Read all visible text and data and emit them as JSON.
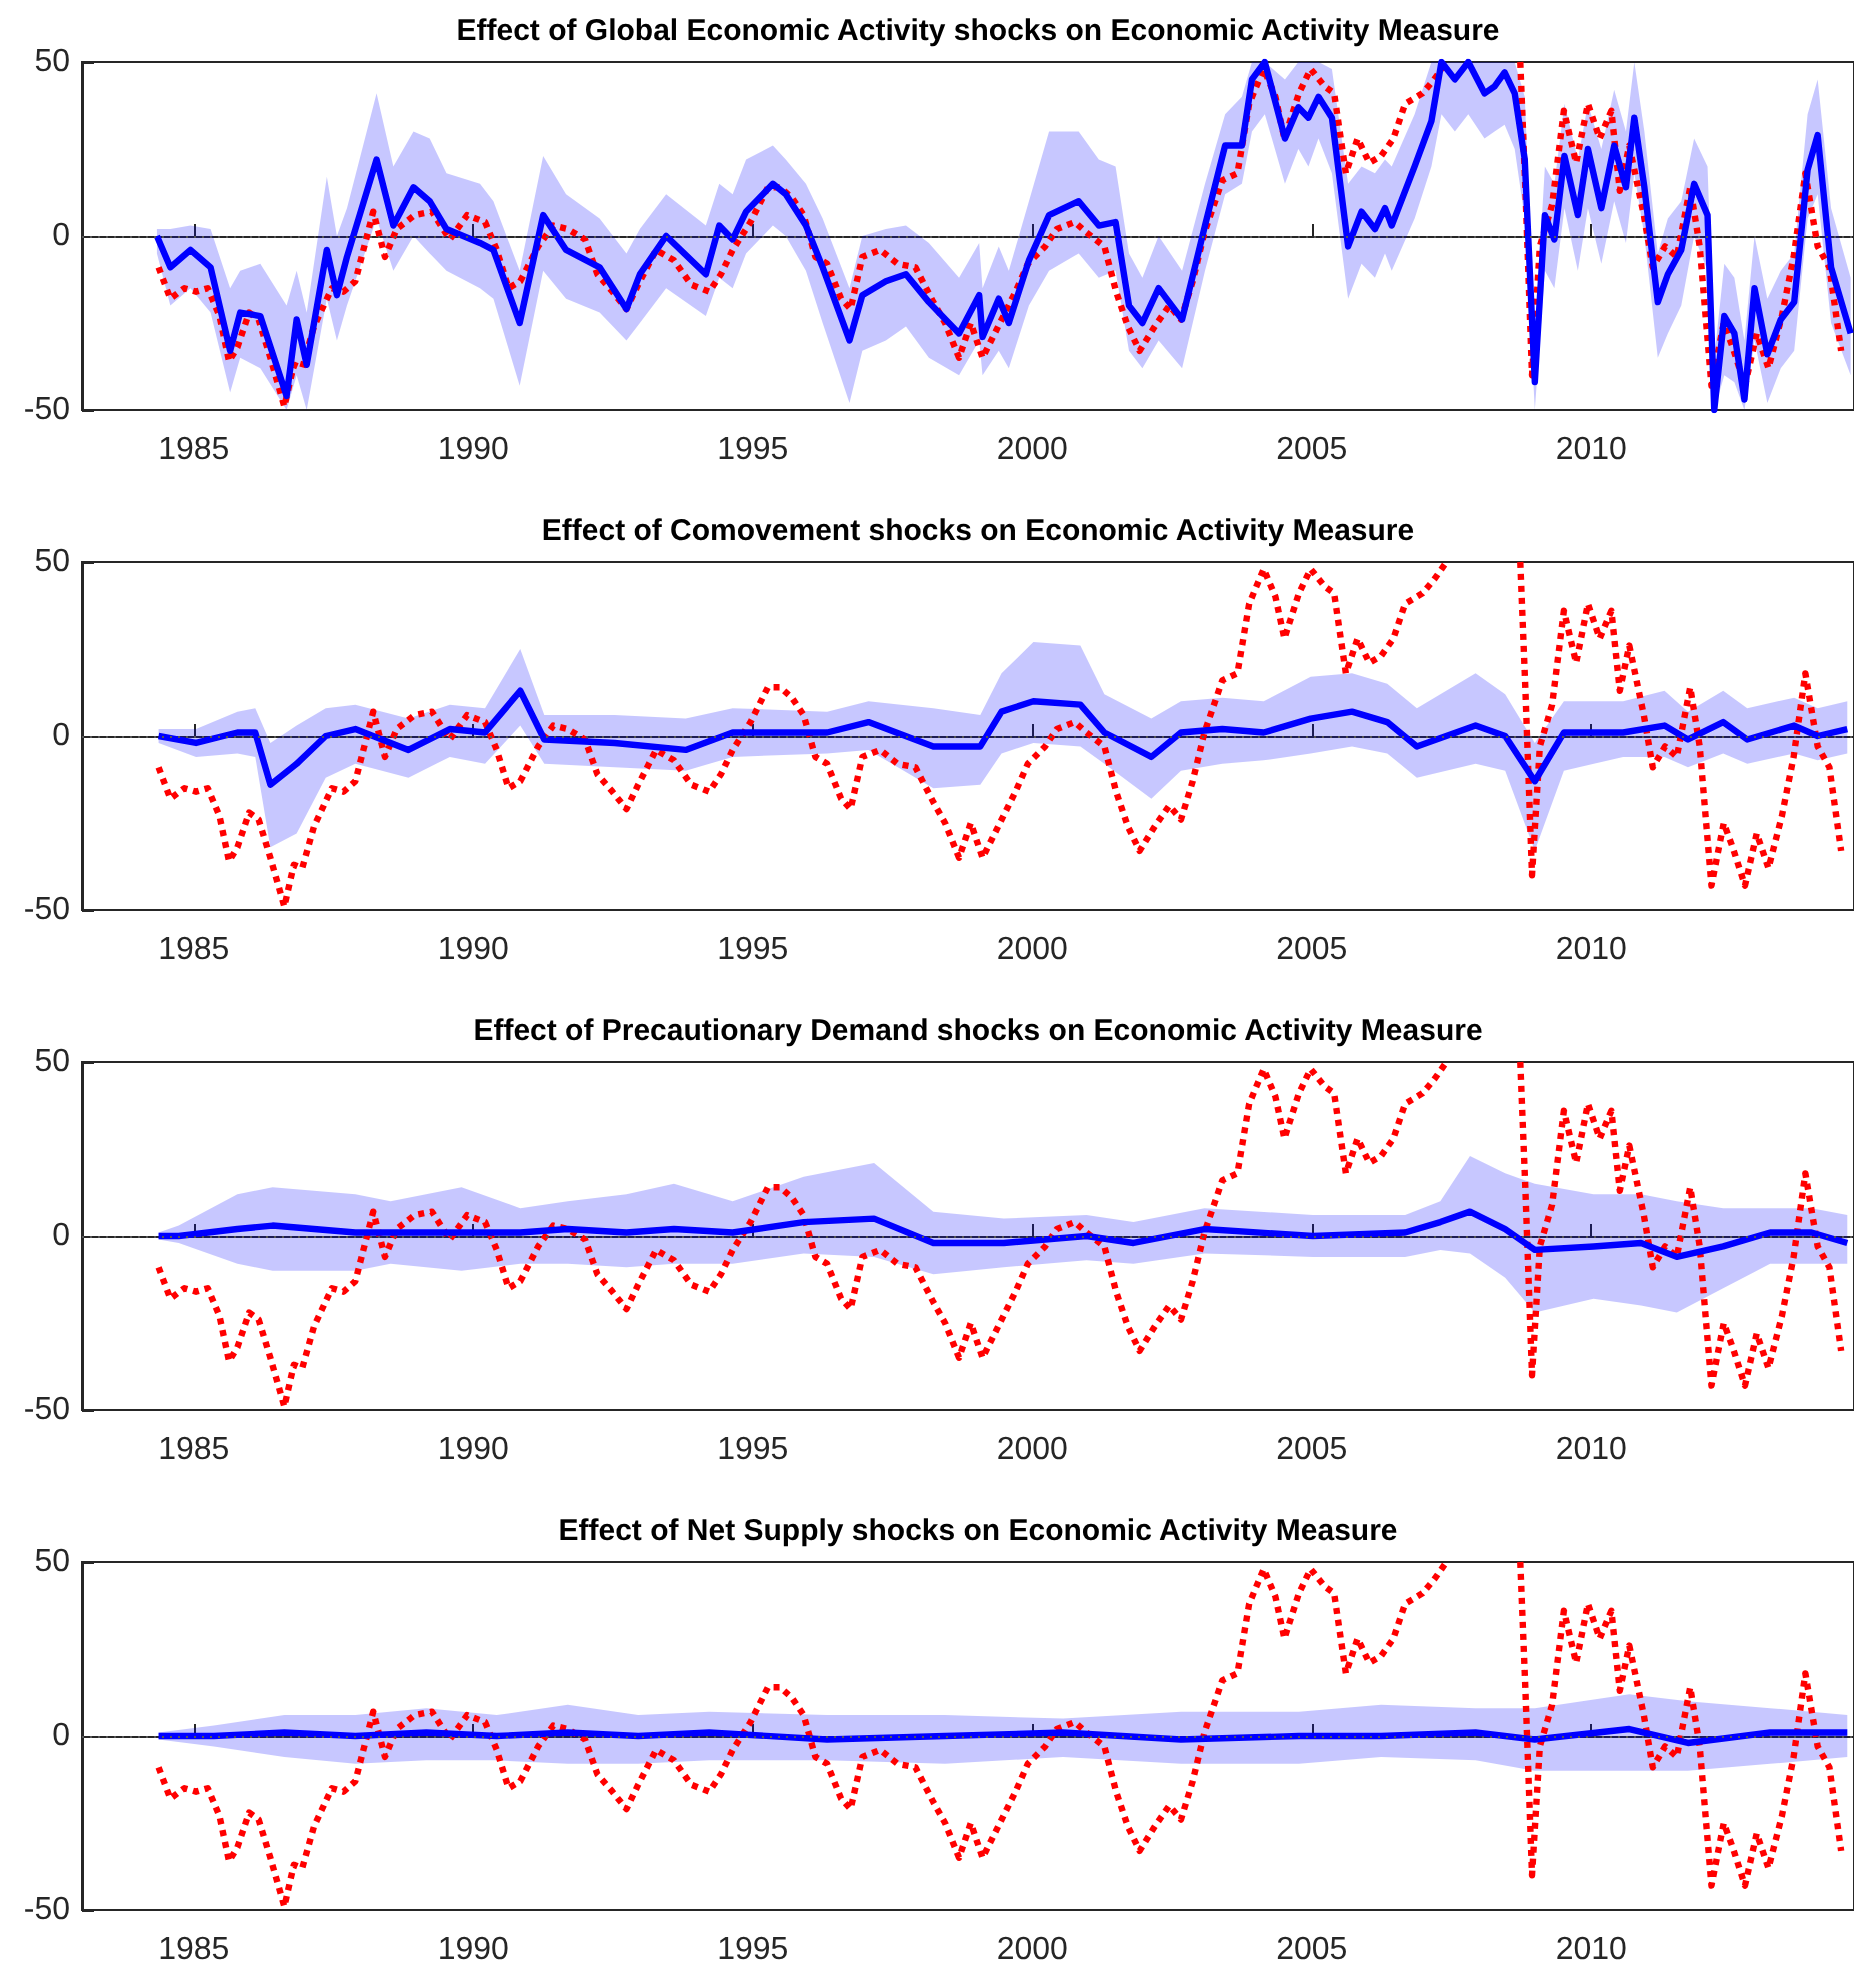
{
  "chart_data": [
    {
      "type": "line",
      "title": "Effect of Global Economic Activity shocks on Economic Activity Measure",
      "xlim": [
        1983,
        2014.7
      ],
      "xticks": [
        1985,
        1990,
        1995,
        2000,
        2005,
        2010
      ],
      "ylim": [
        -50,
        50
      ],
      "yticks": [
        -50,
        0,
        50
      ],
      "grid": false,
      "marker": "none",
      "ref_lines": [
        {
          "axis": "y",
          "value": 0,
          "color": "#555555",
          "line_style": "dotted"
        }
      ],
      "series": [
        {
          "color": "#ff0000",
          "line_style": "dotted",
          "x": [
            1984.37,
            1984.58,
            1984.83,
            1985.04,
            1985.25,
            1985.46,
            1985.63,
            1985.78,
            1985.99,
            1986.16,
            1986.37,
            1986.62,
            1986.79,
            1986.94,
            1987.15,
            1987.47,
            1987.68,
            1987.89,
            1988.21,
            1988.42,
            1988.63,
            1988.95,
            1989.26,
            1989.58,
            1989.89,
            1990.21,
            1990.42,
            1990.63,
            1990.84,
            1991.16,
            1991.43,
            1991.69,
            1992.0,
            1992.22,
            1992.49,
            1992.74,
            1992.95,
            1993.27,
            1993.59,
            1993.9,
            1994.22,
            1994.43,
            1994.64,
            1994.96,
            1995.27,
            1995.49,
            1995.7,
            1995.91,
            1996.12,
            1996.33,
            1996.58,
            1996.75,
            1996.96,
            1997.28,
            1997.59,
            1997.91,
            1998.23,
            1998.44,
            1998.69,
            1998.9,
            1999.11,
            1999.39,
            1999.7,
            1999.92,
            2000.23,
            2000.44,
            2000.76,
            2000.97,
            2001.29,
            2001.5,
            2001.71,
            2001.92,
            2002.19,
            2002.45,
            2002.66,
            2002.87,
            2003.08,
            2003.4,
            2003.67,
            2003.88,
            2004.14,
            2004.35,
            2004.51,
            2004.77,
            2004.98,
            2005.23,
            2005.4,
            2005.61,
            2005.82,
            2006.03,
            2006.24,
            2006.46,
            2006.67,
            2006.98,
            2007.19,
            2007.41,
            2008.0,
            2008.73,
            2008.82,
            2008.94,
            2009.08,
            2009.3,
            2009.51,
            2009.73,
            2009.94,
            2010.15,
            2010.36,
            2010.51,
            2010.68,
            2010.94,
            2011.1,
            2011.32,
            2011.53,
            2011.77,
            2011.94,
            2012.15,
            2012.37,
            2012.53,
            2012.75,
            2012.96,
            2013.17,
            2013.41,
            2013.62,
            2013.83,
            2014.05,
            2014.26,
            2014.47
          ],
          "values": [
            -9,
            -18,
            -15,
            -16,
            -15,
            -23,
            -36,
            -32,
            -22,
            -24,
            -35,
            -49,
            -37,
            -38,
            -26,
            -15,
            -16,
            -13,
            7,
            -6,
            2,
            6,
            7,
            -1,
            6,
            4,
            -4,
            -15,
            -13,
            -3,
            3,
            2,
            -1,
            -11,
            -16,
            -21,
            -14,
            -4,
            -7,
            -14,
            -16,
            -11,
            -4,
            4,
            14,
            14,
            11,
            6,
            -6,
            -8,
            -18,
            -21,
            -6,
            -4,
            -8,
            -9,
            -19,
            -25,
            -35,
            -25,
            -35,
            -26,
            -16,
            -8,
            -3,
            2,
            4,
            1,
            -3,
            -16,
            -26,
            -33,
            -26,
            -20,
            -24,
            -13,
            1,
            16,
            18,
            38,
            48,
            40,
            28,
            41,
            48,
            43,
            41,
            18,
            28,
            21,
            23,
            28,
            38,
            41,
            45,
            50,
            null,
            50,
            14,
            -40,
            -3,
            9,
            36,
            21,
            38,
            28,
            36,
            13,
            26,
            6,
            -9,
            -3,
            -6,
            14,
            -3,
            -43,
            -25,
            -32,
            -43,
            -28,
            -38,
            -23,
            -6,
            18,
            -3,
            -9,
            -33
          ]
        },
        {
          "color": "#0000ff",
          "line_style": "solid",
          "x": [
            1984.34,
            1984.58,
            1984.94,
            1985.3,
            1985.65,
            1985.83,
            1986.19,
            1986.66,
            1986.84,
            1987.02,
            1987.38,
            1987.56,
            1987.74,
            1988.27,
            1988.57,
            1988.93,
            1989.22,
            1989.52,
            1990.12,
            1990.36,
            1990.83,
            1991.25,
            1991.66,
            1992.26,
            1992.74,
            1992.98,
            1993.45,
            1994.16,
            1994.4,
            1994.64,
            1994.88,
            1995.36,
            1995.59,
            1995.95,
            1996.25,
            1996.73,
            1996.96,
            1997.38,
            1997.74,
            1998.15,
            1998.69,
            1999.05,
            1999.11,
            1999.4,
            1999.58,
            1999.94,
            2000.3,
            2000.83,
            2001.19,
            2001.49,
            2001.73,
            2001.97,
            2002.26,
            2002.68,
            2003.09,
            2003.45,
            2003.75,
            2003.93,
            2004.16,
            2004.52,
            2004.76,
            2004.94,
            2005.12,
            2005.36,
            2005.65,
            2005.89,
            2006.13,
            2006.31,
            2006.43,
            2006.84,
            2007.14,
            2007.32,
            2007.56,
            2007.8,
            2008.09,
            2008.27,
            2008.45,
            2008.63,
            2008.81,
            2008.99,
            2009.17,
            2009.34,
            2009.52,
            2009.76,
            2009.94,
            2010.18,
            2010.41,
            2010.62,
            2010.77,
            2010.95,
            2011.19,
            2011.37,
            2011.61,
            2011.84,
            2012.08,
            2012.2,
            2012.38,
            2012.56,
            2012.74,
            2012.92,
            2013.15,
            2013.39,
            2013.63,
            2013.87,
            2014.05,
            2014.29,
            2014.64
          ],
          "values": [
            0,
            -9,
            -4,
            -9,
            -33,
            -22,
            -23,
            -46,
            -24,
            -37,
            -4,
            -17,
            -6,
            22,
            3,
            14,
            10,
            2,
            -2,
            -4,
            -25,
            6,
            -4,
            -9,
            -21,
            -11,
            0,
            -11,
            3,
            -1,
            7,
            15,
            12,
            3,
            -9,
            -30,
            -17,
            -13,
            -11,
            -19,
            -28,
            -17,
            -29,
            -18,
            -25,
            -7,
            6,
            10,
            3,
            4,
            -20,
            -25,
            -15,
            -24,
            3,
            26,
            26,
            45,
            50,
            28,
            37,
            34,
            40,
            34,
            -3,
            7,
            2,
            8,
            3,
            20,
            33,
            50,
            45,
            50,
            41,
            43,
            47,
            41,
            22,
            -42,
            6,
            -1,
            23,
            6,
            25,
            8,
            26,
            14,
            34,
            14,
            -19,
            -11,
            -4,
            15,
            6,
            -50,
            -23,
            -28,
            -47,
            -15,
            -34,
            -24,
            -19,
            19,
            29,
            -9,
            -28
          ],
          "lower": [
            -5,
            -20,
            -15,
            -22,
            -45,
            -35,
            -38,
            -50,
            -40,
            -50,
            -18,
            -30,
            -20,
            5,
            -10,
            0,
            -5,
            -10,
            -15,
            -18,
            -43,
            -10,
            -18,
            -22,
            -30,
            -25,
            -15,
            -23,
            -12,
            -15,
            -5,
            3,
            0,
            -10,
            -25,
            -48,
            -33,
            -30,
            -26,
            -35,
            -40,
            -30,
            -40,
            -33,
            -38,
            -20,
            -10,
            -5,
            -12,
            -10,
            -33,
            -38,
            -30,
            -38,
            -10,
            12,
            15,
            30,
            35,
            15,
            25,
            20,
            28,
            18,
            -18,
            -8,
            -12,
            -5,
            -10,
            5,
            20,
            35,
            30,
            35,
            28,
            30,
            32,
            25,
            5,
            -50,
            -10,
            -15,
            8,
            -10,
            8,
            -8,
            10,
            -2,
            18,
            0,
            -35,
            -28,
            -20,
            0,
            -10,
            -50,
            -40,
            -42,
            -50,
            -30,
            -48,
            -38,
            -33,
            5,
            12,
            -25,
            -40
          ],
          "upper": [
            2,
            2,
            3,
            2,
            -15,
            -10,
            -8,
            -20,
            -10,
            -22,
            17,
            0,
            8,
            41,
            20,
            30,
            28,
            18,
            15,
            10,
            -10,
            23,
            12,
            5,
            -5,
            2,
            12,
            3,
            15,
            12,
            22,
            26,
            22,
            15,
            5,
            -15,
            0,
            2,
            3,
            -2,
            -12,
            -2,
            -15,
            -3,
            -10,
            10,
            30,
            30,
            22,
            20,
            -5,
            -12,
            0,
            -10,
            15,
            35,
            40,
            50,
            50,
            45,
            50,
            50,
            50,
            48,
            15,
            20,
            18,
            22,
            20,
            35,
            50,
            50,
            50,
            50,
            50,
            50,
            50,
            50,
            40,
            -30,
            20,
            15,
            38,
            22,
            38,
            25,
            42,
            30,
            50,
            30,
            -5,
            5,
            10,
            28,
            20,
            -35,
            -8,
            -12,
            -30,
            0,
            -18,
            -10,
            -5,
            35,
            45,
            8,
            -12
          ]
        }
      ]
    },
    {
      "type": "line",
      "title": "Effect of Comovement shocks on Economic Activity Measure",
      "xlim": [
        1983,
        2014.7
      ],
      "xticks": [
        1985,
        1990,
        1995,
        2000,
        2005,
        2010
      ],
      "ylim": [
        -50,
        50
      ],
      "yticks": [
        -50,
        0,
        50
      ],
      "grid": false,
      "marker": "none",
      "ref_lines": [
        {
          "axis": "y",
          "value": 0,
          "color": "#555555",
          "line_style": "dotted"
        }
      ],
      "series": [
        {
          "color": "#ff0000",
          "line_style": "dotted",
          "x": [
            1984.37,
            1984.58,
            1984.83,
            1985.04,
            1985.25,
            1985.46,
            1985.63,
            1985.78,
            1985.99,
            1986.16,
            1986.37,
            1986.62,
            1986.79,
            1986.94,
            1987.15,
            1987.47,
            1987.68,
            1987.89,
            1988.21,
            1988.42,
            1988.63,
            1988.95,
            1989.26,
            1989.58,
            1989.89,
            1990.21,
            1990.42,
            1990.63,
            1990.84,
            1991.16,
            1991.43,
            1991.69,
            1992.0,
            1992.22,
            1992.49,
            1992.74,
            1992.95,
            1993.27,
            1993.59,
            1993.9,
            1994.22,
            1994.43,
            1994.64,
            1994.96,
            1995.27,
            1995.49,
            1995.7,
            1995.91,
            1996.12,
            1996.33,
            1996.58,
            1996.75,
            1996.96,
            1997.28,
            1997.59,
            1997.91,
            1998.23,
            1998.44,
            1998.69,
            1998.9,
            1999.11,
            1999.39,
            1999.7,
            1999.92,
            2000.23,
            2000.44,
            2000.76,
            2000.97,
            2001.29,
            2001.5,
            2001.71,
            2001.92,
            2002.19,
            2002.45,
            2002.66,
            2002.87,
            2003.08,
            2003.4,
            2003.67,
            2003.88,
            2004.14,
            2004.35,
            2004.51,
            2004.77,
            2004.98,
            2005.23,
            2005.4,
            2005.61,
            2005.82,
            2006.03,
            2006.24,
            2006.46,
            2006.67,
            2006.98,
            2007.19,
            2007.41,
            2008.0,
            2008.73,
            2008.82,
            2008.94,
            2009.08,
            2009.3,
            2009.51,
            2009.73,
            2009.94,
            2010.15,
            2010.36,
            2010.51,
            2010.68,
            2010.94,
            2011.1,
            2011.32,
            2011.53,
            2011.77,
            2011.94,
            2012.15,
            2012.37,
            2012.53,
            2012.75,
            2012.96,
            2013.17,
            2013.41,
            2013.62,
            2013.83,
            2014.05,
            2014.26,
            2014.47
          ],
          "values": [
            -9,
            -18,
            -15,
            -16,
            -15,
            -23,
            -36,
            -32,
            -22,
            -24,
            -35,
            -49,
            -37,
            -38,
            -26,
            -15,
            -16,
            -13,
            7,
            -6,
            2,
            6,
            7,
            -1,
            6,
            4,
            -4,
            -15,
            -13,
            -3,
            3,
            2,
            -1,
            -11,
            -16,
            -21,
            -14,
            -4,
            -7,
            -14,
            -16,
            -11,
            -4,
            4,
            14,
            14,
            11,
            6,
            -6,
            -8,
            -18,
            -21,
            -6,
            -4,
            -8,
            -9,
            -19,
            -25,
            -35,
            -25,
            -35,
            -26,
            -16,
            -8,
            -3,
            2,
            4,
            1,
            -3,
            -16,
            -26,
            -33,
            -26,
            -20,
            -24,
            -13,
            1,
            16,
            18,
            38,
            48,
            40,
            28,
            41,
            48,
            43,
            41,
            18,
            28,
            21,
            23,
            28,
            38,
            41,
            45,
            50,
            null,
            50,
            14,
            -40,
            -3,
            9,
            36,
            21,
            38,
            28,
            36,
            13,
            26,
            6,
            -9,
            -3,
            -6,
            14,
            -3,
            -43,
            -25,
            -32,
            -43,
            -28,
            -38,
            -23,
            -6,
            18,
            -3,
            -9,
            -33
          ]
        },
        {
          "color": "#0000ff",
          "line_style": "solid",
          "x": [
            1984.37,
            1985.04,
            1985.78,
            1986.1,
            1986.37,
            1986.84,
            1987.36,
            1987.89,
            1988.84,
            1989.58,
            1990.21,
            1990.84,
            1991.27,
            1992.53,
            1993.8,
            1994.64,
            1996.33,
            1997.07,
            1998.23,
            1999.07,
            1999.45,
            2000.02,
            2000.86,
            2001.29,
            2002.13,
            2002.66,
            2003.4,
            2004.14,
            2004.98,
            2005.72,
            2006.35,
            2006.88,
            2007.93,
            2008.46,
            2008.99,
            2009.51,
            2010.57,
            2011.31,
            2011.73,
            2012.36,
            2012.79,
            2013.63,
            2014.05,
            2014.58
          ],
          "values": [
            0,
            -2,
            1,
            1,
            -14,
            -8,
            0,
            2,
            -4,
            2,
            1,
            13,
            -1,
            -2,
            -4,
            1,
            1,
            4,
            -3,
            -3,
            7,
            10,
            9,
            1,
            -6,
            1,
            2,
            1,
            5,
            7,
            4,
            -3,
            3,
            0,
            -13,
            1,
            1,
            3,
            -1,
            4,
            -1,
            3,
            0,
            2
          ],
          "lower": [
            -2,
            -6,
            -5,
            -6,
            -32,
            -28,
            -12,
            -8,
            -12,
            -6,
            -8,
            3,
            -8,
            -9,
            -10,
            -6,
            -5,
            -4,
            -15,
            -14,
            -5,
            -2,
            -3,
            -8,
            -18,
            -10,
            -8,
            -7,
            -5,
            -3,
            -5,
            -12,
            -8,
            -10,
            -33,
            -10,
            -6,
            -6,
            -9,
            -5,
            -8,
            -5,
            -7,
            -5
          ],
          "upper": [
            2,
            2,
            7,
            8,
            -2,
            3,
            8,
            9,
            5,
            9,
            8,
            25,
            6,
            6,
            5,
            8,
            7,
            10,
            8,
            6,
            18,
            27,
            26,
            12,
            5,
            10,
            11,
            10,
            17,
            18,
            15,
            8,
            18,
            12,
            -2,
            10,
            10,
            13,
            7,
            13,
            8,
            11,
            8,
            10
          ]
        }
      ]
    },
    {
      "type": "line",
      "title": "Effect of Precautionary Demand shocks on Economic Activity Measure",
      "xlim": [
        1983,
        2014.7
      ],
      "xticks": [
        1985,
        1990,
        1995,
        2000,
        2005,
        2010
      ],
      "ylim": [
        -50,
        50
      ],
      "yticks": [
        -50,
        0,
        50
      ],
      "grid": false,
      "marker": "none",
      "ref_lines": [
        {
          "axis": "y",
          "value": 0,
          "color": "#555555",
          "line_style": "dotted"
        }
      ],
      "series": [
        {
          "color": "#ff0000",
          "line_style": "dotted",
          "x": [
            1984.37,
            1984.58,
            1984.83,
            1985.04,
            1985.25,
            1985.46,
            1985.63,
            1985.78,
            1985.99,
            1986.16,
            1986.37,
            1986.62,
            1986.79,
            1986.94,
            1987.15,
            1987.47,
            1987.68,
            1987.89,
            1988.21,
            1988.42,
            1988.63,
            1988.95,
            1989.26,
            1989.58,
            1989.89,
            1990.21,
            1990.42,
            1990.63,
            1990.84,
            1991.16,
            1991.43,
            1991.69,
            1992.0,
            1992.22,
            1992.49,
            1992.74,
            1992.95,
            1993.27,
            1993.59,
            1993.9,
            1994.22,
            1994.43,
            1994.64,
            1994.96,
            1995.27,
            1995.49,
            1995.7,
            1995.91,
            1996.12,
            1996.33,
            1996.58,
            1996.75,
            1996.96,
            1997.28,
            1997.59,
            1997.91,
            1998.23,
            1998.44,
            1998.69,
            1998.9,
            1999.11,
            1999.39,
            1999.7,
            1999.92,
            2000.23,
            2000.44,
            2000.76,
            2000.97,
            2001.29,
            2001.5,
            2001.71,
            2001.92,
            2002.19,
            2002.45,
            2002.66,
            2002.87,
            2003.08,
            2003.4,
            2003.67,
            2003.88,
            2004.14,
            2004.35,
            2004.51,
            2004.77,
            2004.98,
            2005.23,
            2005.4,
            2005.61,
            2005.82,
            2006.03,
            2006.24,
            2006.46,
            2006.67,
            2006.98,
            2007.19,
            2007.41,
            2008.0,
            2008.73,
            2008.82,
            2008.94,
            2009.08,
            2009.3,
            2009.51,
            2009.73,
            2009.94,
            2010.15,
            2010.36,
            2010.51,
            2010.68,
            2010.94,
            2011.1,
            2011.32,
            2011.53,
            2011.77,
            2011.94,
            2012.15,
            2012.37,
            2012.53,
            2012.75,
            2012.96,
            2013.17,
            2013.41,
            2013.62,
            2013.83,
            2014.05,
            2014.26,
            2014.47
          ],
          "values": [
            -9,
            -18,
            -15,
            -16,
            -15,
            -23,
            -36,
            -32,
            -22,
            -24,
            -35,
            -49,
            -37,
            -38,
            -26,
            -15,
            -16,
            -13,
            7,
            -6,
            2,
            6,
            7,
            -1,
            6,
            4,
            -4,
            -15,
            -13,
            -3,
            3,
            2,
            -1,
            -11,
            -16,
            -21,
            -14,
            -4,
            -7,
            -14,
            -16,
            -11,
            -4,
            4,
            14,
            14,
            11,
            6,
            -6,
            -8,
            -18,
            -21,
            -6,
            -4,
            -8,
            -9,
            -19,
            -25,
            -35,
            -25,
            -35,
            -26,
            -16,
            -8,
            -3,
            2,
            4,
            1,
            -3,
            -16,
            -26,
            -33,
            -26,
            -20,
            -24,
            -13,
            1,
            16,
            18,
            38,
            48,
            40,
            28,
            41,
            48,
            43,
            41,
            18,
            28,
            21,
            23,
            28,
            38,
            41,
            45,
            50,
            null,
            50,
            14,
            -40,
            -3,
            9,
            36,
            21,
            38,
            28,
            36,
            13,
            26,
            6,
            -9,
            -3,
            -6,
            14,
            -3,
            -43,
            -25,
            -32,
            -43,
            -28,
            -38,
            -23,
            -6,
            18,
            -3,
            -9,
            -33
          ]
        },
        {
          "color": "#0000ff",
          "line_style": "solid",
          "x": [
            1984.37,
            1984.73,
            1985.78,
            1986.41,
            1987.89,
            1988.52,
            1989.79,
            1990.84,
            1991.69,
            1992.74,
            1993.59,
            1994.64,
            1995.91,
            1997.17,
            1998.23,
            1999.49,
            2000.97,
            2001.81,
            2003.08,
            2005.02,
            2006.67,
            2007.3,
            2007.83,
            2008.46,
            2008.99,
            2010.04,
            2010.89,
            2011.53,
            2012.36,
            2013.2,
            2013.94,
            2014.58
          ],
          "values": [
            0,
            0,
            2,
            3,
            1,
            1,
            1,
            1,
            2,
            1,
            2,
            1,
            4,
            5,
            -2,
            -2,
            0,
            -2,
            2,
            0,
            1,
            4,
            7,
            2,
            -4,
            -3,
            -2,
            -6,
            -3,
            1,
            1,
            -2
          ],
          "lower": [
            -1,
            -2,
            -8,
            -10,
            -10,
            -8,
            -10,
            -8,
            -8,
            -9,
            -8,
            -8,
            -5,
            -6,
            -11,
            -9,
            -7,
            -8,
            -5,
            -6,
            -6,
            -4,
            -5,
            -12,
            -22,
            -18,
            -20,
            -22,
            -15,
            -8,
            -8,
            -8
          ],
          "upper": [
            1,
            3,
            12,
            14,
            12,
            10,
            14,
            8,
            10,
            12,
            15,
            10,
            17,
            21,
            7,
            5,
            6,
            4,
            8,
            6,
            6,
            10,
            23,
            18,
            15,
            12,
            12,
            10,
            8,
            8,
            8,
            6
          ]
        }
      ]
    },
    {
      "type": "line",
      "title": "Effect of Net Supply shocks on Economic Activity Measure",
      "xlim": [
        1983,
        2014.7
      ],
      "xticks": [
        1985,
        1990,
        1995,
        2000,
        2005,
        2010
      ],
      "ylim": [
        -50,
        50
      ],
      "yticks": [
        -50,
        0,
        50
      ],
      "grid": false,
      "marker": "none",
      "ref_lines": [
        {
          "axis": "y",
          "value": 0,
          "color": "#555555",
          "line_style": "dotted"
        }
      ],
      "series": [
        {
          "color": "#ff0000",
          "line_style": "dotted",
          "x": [
            1984.37,
            1984.58,
            1984.83,
            1985.04,
            1985.25,
            1985.46,
            1985.63,
            1985.78,
            1985.99,
            1986.16,
            1986.37,
            1986.62,
            1986.79,
            1986.94,
            1987.15,
            1987.47,
            1987.68,
            1987.89,
            1988.21,
            1988.42,
            1988.63,
            1988.95,
            1989.26,
            1989.58,
            1989.89,
            1990.21,
            1990.42,
            1990.63,
            1990.84,
            1991.16,
            1991.43,
            1991.69,
            1992.0,
            1992.22,
            1992.49,
            1992.74,
            1992.95,
            1993.27,
            1993.59,
            1993.9,
            1994.22,
            1994.43,
            1994.64,
            1994.96,
            1995.27,
            1995.49,
            1995.7,
            1995.91,
            1996.12,
            1996.33,
            1996.58,
            1996.75,
            1996.96,
            1997.28,
            1997.59,
            1997.91,
            1998.23,
            1998.44,
            1998.69,
            1998.9,
            1999.11,
            1999.39,
            1999.7,
            1999.92,
            2000.23,
            2000.44,
            2000.76,
            2000.97,
            2001.29,
            2001.5,
            2001.71,
            2001.92,
            2002.19,
            2002.45,
            2002.66,
            2002.87,
            2003.08,
            2003.4,
            2003.67,
            2003.88,
            2004.14,
            2004.35,
            2004.51,
            2004.77,
            2004.98,
            2005.23,
            2005.4,
            2005.61,
            2005.82,
            2006.03,
            2006.24,
            2006.46,
            2006.67,
            2006.98,
            2007.19,
            2007.41,
            2008.0,
            2008.73,
            2008.82,
            2008.94,
            2009.08,
            2009.3,
            2009.51,
            2009.73,
            2009.94,
            2010.15,
            2010.36,
            2010.51,
            2010.68,
            2010.94,
            2011.1,
            2011.32,
            2011.53,
            2011.77,
            2011.94,
            2012.15,
            2012.37,
            2012.53,
            2012.75,
            2012.96,
            2013.17,
            2013.41,
            2013.62,
            2013.83,
            2014.05,
            2014.26,
            2014.47
          ],
          "values": [
            -9,
            -18,
            -15,
            -16,
            -15,
            -23,
            -36,
            -32,
            -22,
            -24,
            -35,
            -49,
            -37,
            -38,
            -26,
            -15,
            -16,
            -13,
            7,
            -6,
            2,
            6,
            7,
            -1,
            6,
            4,
            -4,
            -15,
            -13,
            -3,
            3,
            2,
            -1,
            -11,
            -16,
            -21,
            -14,
            -4,
            -7,
            -14,
            -16,
            -11,
            -4,
            4,
            14,
            14,
            11,
            6,
            -6,
            -8,
            -18,
            -21,
            -6,
            -4,
            -8,
            -9,
            -19,
            -25,
            -35,
            -25,
            -35,
            -26,
            -16,
            -8,
            -3,
            2,
            4,
            1,
            -3,
            -16,
            -26,
            -33,
            -26,
            -20,
            -24,
            -13,
            1,
            16,
            18,
            38,
            48,
            40,
            28,
            41,
            48,
            43,
            41,
            18,
            28,
            21,
            23,
            28,
            38,
            41,
            45,
            50,
            null,
            50,
            14,
            -40,
            -3,
            9,
            36,
            21,
            38,
            28,
            36,
            13,
            26,
            6,
            -9,
            -3,
            -6,
            14,
            -3,
            -43,
            -25,
            -32,
            -43,
            -28,
            -38,
            -23,
            -6,
            18,
            -3,
            -9,
            -33
          ]
        },
        {
          "color": "#0000ff",
          "line_style": "solid",
          "x": [
            1984.37,
            1985.36,
            1986.62,
            1987.89,
            1989.16,
            1990.42,
            1991.69,
            1992.95,
            1994.22,
            1996.33,
            1998.44,
            2000.55,
            2002.66,
            2004.77,
            2006.24,
            2007.93,
            2008.99,
            2010.68,
            2011.73,
            2013.2,
            2014.58
          ],
          "values": [
            0,
            0,
            1,
            0,
            1,
            0,
            1,
            0,
            1,
            -1,
            0,
            1,
            -1,
            0,
            0,
            1,
            -1,
            2,
            -2,
            1,
            1
          ],
          "lower": [
            -1,
            -3,
            -6,
            -8,
            -7,
            -7,
            -8,
            -8,
            -7,
            -7,
            -8,
            -6,
            -8,
            -8,
            -6,
            -7,
            -10,
            -10,
            -10,
            -8,
            -6
          ],
          "upper": [
            1,
            3,
            6,
            6,
            8,
            6,
            9,
            6,
            7,
            6,
            6,
            5,
            7,
            7,
            9,
            8,
            8,
            12,
            10,
            8,
            6
          ]
        }
      ]
    }
  ]
}
